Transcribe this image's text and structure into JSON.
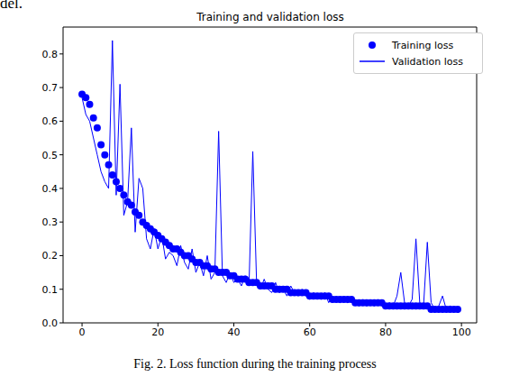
{
  "chart_data": {
    "type": "line",
    "title": "Training and validation loss",
    "caption": "Fig. 2. Loss function during the training process",
    "annotations": [
      "del."
    ],
    "x": [
      0,
      1,
      2,
      3,
      4,
      5,
      6,
      7,
      8,
      9,
      10,
      11,
      12,
      13,
      14,
      15,
      16,
      17,
      18,
      19,
      20,
      21,
      22,
      23,
      24,
      25,
      26,
      27,
      28,
      29,
      30,
      31,
      32,
      33,
      34,
      35,
      36,
      37,
      38,
      39,
      40,
      41,
      42,
      43,
      44,
      45,
      46,
      47,
      48,
      49,
      50,
      51,
      52,
      53,
      54,
      55,
      56,
      57,
      58,
      59,
      60,
      61,
      62,
      63,
      64,
      65,
      66,
      67,
      68,
      69,
      70,
      71,
      72,
      73,
      74,
      75,
      76,
      77,
      78,
      79,
      80,
      81,
      82,
      83,
      84,
      85,
      86,
      87,
      88,
      89,
      90,
      91,
      92,
      93,
      94,
      95,
      96,
      97,
      98,
      99
    ],
    "series": [
      {
        "name": "Training loss",
        "color": "#0000ff",
        "type": "scatter",
        "marker": "circle",
        "line_style": "none",
        "values": [
          0.68,
          0.67,
          0.65,
          0.61,
          0.58,
          0.53,
          0.5,
          0.47,
          0.44,
          0.42,
          0.4,
          0.38,
          0.36,
          0.35,
          0.33,
          0.32,
          0.3,
          0.29,
          0.28,
          0.27,
          0.26,
          0.25,
          0.24,
          0.23,
          0.22,
          0.22,
          0.21,
          0.2,
          0.2,
          0.19,
          0.18,
          0.18,
          0.17,
          0.17,
          0.16,
          0.16,
          0.15,
          0.15,
          0.15,
          0.14,
          0.14,
          0.13,
          0.13,
          0.13,
          0.12,
          0.12,
          0.12,
          0.11,
          0.11,
          0.11,
          0.11,
          0.1,
          0.1,
          0.1,
          0.1,
          0.09,
          0.09,
          0.09,
          0.09,
          0.09,
          0.08,
          0.08,
          0.08,
          0.08,
          0.08,
          0.08,
          0.07,
          0.07,
          0.07,
          0.07,
          0.07,
          0.07,
          0.06,
          0.06,
          0.06,
          0.06,
          0.06,
          0.06,
          0.06,
          0.06,
          0.05,
          0.05,
          0.05,
          0.05,
          0.05,
          0.05,
          0.05,
          0.05,
          0.05,
          0.05,
          0.05,
          0.05,
          0.04,
          0.04,
          0.04,
          0.04,
          0.04,
          0.04,
          0.04,
          0.04
        ]
      },
      {
        "name": "Validation loss",
        "color": "#0000ff",
        "type": "line",
        "marker": "none",
        "line_style": "solid",
        "values": [
          0.67,
          0.62,
          0.6,
          0.55,
          0.5,
          0.45,
          0.42,
          0.4,
          0.84,
          0.38,
          0.71,
          0.32,
          0.36,
          0.58,
          0.27,
          0.43,
          0.4,
          0.25,
          0.22,
          0.28,
          0.22,
          0.26,
          0.19,
          0.21,
          0.2,
          0.17,
          0.23,
          0.18,
          0.16,
          0.22,
          0.15,
          0.18,
          0.14,
          0.2,
          0.13,
          0.15,
          0.57,
          0.14,
          0.12,
          0.15,
          0.12,
          0.13,
          0.11,
          0.14,
          0.11,
          0.51,
          0.12,
          0.1,
          0.13,
          0.1,
          0.09,
          0.12,
          0.09,
          0.1,
          0.08,
          0.11,
          0.09,
          0.08,
          0.1,
          0.08,
          0.07,
          0.09,
          0.08,
          0.07,
          0.09,
          0.06,
          0.08,
          0.07,
          0.06,
          0.08,
          0.06,
          0.07,
          0.06,
          0.05,
          0.07,
          0.05,
          0.06,
          0.05,
          0.07,
          0.05,
          0.05,
          0.06,
          0.05,
          0.08,
          0.15,
          0.06,
          0.05,
          0.07,
          0.25,
          0.06,
          0.05,
          0.24,
          0.06,
          0.04,
          0.05,
          0.08,
          0.04,
          0.05,
          0.04,
          0.04
        ]
      }
    ],
    "xlim": [
      -5,
      104
    ],
    "xticks": [
      0,
      20,
      40,
      60,
      80,
      100
    ],
    "ylim": [
      0,
      0.88
    ],
    "yticks": [
      {
        "value": 0,
        "label": "0.0"
      },
      0.1,
      0.2,
      0.3,
      0.4,
      0.5,
      0.6,
      0.7,
      0.8
    ],
    "legend": "upper right"
  }
}
